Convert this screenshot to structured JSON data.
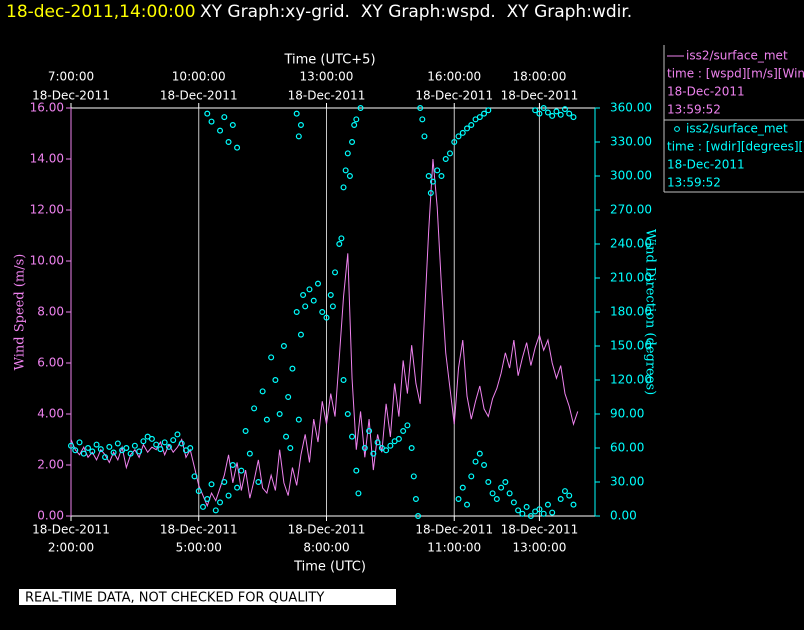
{
  "chart_data": {
    "type": "xy",
    "timestamp": "18-dec-2011,14:00:00",
    "title": "XY Graph:xy-grid.  XY Graph:wspd.  XY Graph:wdir.",
    "x_label": "Time (UTC)",
    "x2_label": "Time (UTC+5)",
    "y_label": "Wind Speed (m/s)",
    "y2_label": "Wind Direction (degrees)",
    "note": "REAL-TIME DATA, NOT CHECKED FOR QUALITY",
    "xlim": [
      2,
      14
    ],
    "xticks": [
      {
        "value": 2,
        "label": "2:00:00",
        "date": "18-Dec-2011"
      },
      {
        "value": 5,
        "label": "5:00:00",
        "date": "18-Dec-2011"
      },
      {
        "value": 8,
        "label": "8:00:00",
        "date": "18-Dec-2011"
      },
      {
        "value": 11,
        "label": "11:00:00",
        "date": "18-Dec-2011"
      },
      {
        "value": 13,
        "label": "13:00:00",
        "date": "18-Dec-2011"
      }
    ],
    "x2lim": [
      7,
      19
    ],
    "x2ticks": [
      {
        "value": 7,
        "label": "7:00:00",
        "date": "18-Dec-2011"
      },
      {
        "value": 10,
        "label": "10:00:00",
        "date": "18-Dec-2011"
      },
      {
        "value": 13,
        "label": "13:00:00",
        "date": "18-Dec-2011"
      },
      {
        "value": 16,
        "label": "16:00:00",
        "date": "18-Dec-2011"
      },
      {
        "value": 18,
        "label": "18:00:00",
        "date": "18-Dec-2011"
      }
    ],
    "ylim": [
      0,
      16
    ],
    "yticks": [
      {
        "value": 0,
        "label": "0.00"
      },
      {
        "value": 2,
        "label": "2.00"
      },
      {
        "value": 4,
        "label": "4.00"
      },
      {
        "value": 6,
        "label": "6.00"
      },
      {
        "value": 8,
        "label": "8.00"
      },
      {
        "value": 10,
        "label": "10.00"
      },
      {
        "value": 12,
        "label": "12.00"
      },
      {
        "value": 14,
        "label": "14.00"
      },
      {
        "value": 16,
        "label": "16.00"
      }
    ],
    "y2lim": [
      0,
      360
    ],
    "y2ticks": [
      {
        "value": 0,
        "label": "0.00"
      },
      {
        "value": 30,
        "label": "30.00"
      },
      {
        "value": 60,
        "label": "60.00"
      },
      {
        "value": 90,
        "label": "90.00"
      },
      {
        "value": 120,
        "label": "120.00"
      },
      {
        "value": 150,
        "label": "150.00"
      },
      {
        "value": 180,
        "label": "180.00"
      },
      {
        "value": 210,
        "label": "210.00"
      },
      {
        "value": 240,
        "label": "240.00"
      },
      {
        "value": 270,
        "label": "270.00"
      },
      {
        "value": 300,
        "label": "300.00"
      },
      {
        "value": 330,
        "label": "330.00"
      },
      {
        "value": 360,
        "label": "360.00"
      }
    ],
    "grid": true,
    "series": [
      {
        "name": "iss2/surface_met",
        "type": "line",
        "color": "#ee82ee",
        "legend_lines": [
          "time : [wspd][m/s][Wind",
          "18-Dec-2011",
          "13:59:52"
        ],
        "x": [
          2.0,
          2.1,
          2.2,
          2.3,
          2.4,
          2.5,
          2.6,
          2.7,
          2.8,
          2.9,
          3.0,
          3.1,
          3.2,
          3.3,
          3.4,
          3.5,
          3.6,
          3.7,
          3.8,
          3.9,
          4.0,
          4.1,
          4.2,
          4.3,
          4.4,
          4.5,
          4.6,
          4.7,
          4.8,
          4.9,
          5.0,
          5.1,
          5.2,
          5.3,
          5.4,
          5.5,
          5.6,
          5.7,
          5.8,
          5.9,
          6.0,
          6.1,
          6.2,
          6.3,
          6.4,
          6.5,
          6.6,
          6.7,
          6.8,
          6.9,
          7.0,
          7.1,
          7.2,
          7.3,
          7.4,
          7.5,
          7.6,
          7.7,
          7.8,
          7.9,
          8.0,
          8.1,
          8.2,
          8.3,
          8.4,
          8.5,
          8.6,
          8.7,
          8.8,
          8.9,
          9.0,
          9.1,
          9.2,
          9.3,
          9.4,
          9.5,
          9.6,
          9.7,
          9.8,
          9.9,
          10.0,
          10.1,
          10.2,
          10.3,
          10.4,
          10.5,
          10.6,
          10.7,
          10.8,
          10.9,
          11.0,
          11.1,
          11.2,
          11.3,
          11.4,
          11.5,
          11.6,
          11.7,
          11.8,
          11.9,
          12.0,
          12.1,
          12.2,
          12.3,
          12.4,
          12.5,
          12.6,
          12.7,
          12.8,
          12.9,
          13.0,
          13.1,
          13.2,
          13.3,
          13.4,
          13.5,
          13.6,
          13.7,
          13.8,
          13.9
        ],
        "values": [
          3.0,
          2.6,
          2.4,
          2.7,
          2.3,
          2.5,
          2.2,
          2.6,
          2.4,
          2.1,
          2.5,
          2.2,
          2.7,
          1.9,
          2.4,
          2.6,
          2.3,
          2.8,
          2.5,
          2.7,
          2.6,
          2.9,
          2.4,
          2.8,
          2.5,
          2.7,
          3.0,
          2.3,
          2.6,
          1.9,
          1.2,
          0.8,
          0.4,
          0.9,
          0.6,
          1.1,
          1.6,
          2.4,
          1.3,
          2.1,
          1.0,
          1.8,
          0.7,
          1.4,
          2.2,
          1.1,
          0.9,
          1.6,
          1.0,
          2.6,
          1.3,
          0.8,
          1.9,
          1.2,
          2.4,
          3.2,
          2.1,
          3.8,
          2.9,
          4.5,
          3.6,
          4.8,
          3.9,
          6.2,
          8.6,
          10.3,
          5.4,
          2.6,
          4.1,
          2.3,
          3.8,
          1.8,
          3.2,
          2.5,
          4.4,
          3.1,
          5.2,
          3.9,
          6.1,
          4.8,
          6.7,
          5.2,
          4.4,
          7.8,
          11.2,
          14.0,
          12.1,
          9.0,
          6.4,
          5.0,
          3.6,
          5.8,
          6.9,
          4.7,
          3.8,
          4.5,
          5.1,
          4.2,
          3.9,
          4.6,
          5.0,
          5.6,
          6.4,
          5.8,
          6.9,
          5.5,
          6.2,
          6.8,
          5.9,
          6.6,
          7.1,
          6.5,
          6.9,
          6.0,
          5.4,
          5.9,
          4.8,
          4.3,
          3.6,
          4.1
        ]
      },
      {
        "name": "iss2/surface_met",
        "type": "scatter",
        "axis": "y2",
        "color": "#00ffff",
        "legend_lines": [
          "time : [wdir][degrees][Wind",
          "18-Dec-2011",
          "13:59:52"
        ],
        "x": [
          2.0,
          2.1,
          2.2,
          2.3,
          2.4,
          2.5,
          2.6,
          2.7,
          2.8,
          2.9,
          3.0,
          3.1,
          3.2,
          3.3,
          3.4,
          3.5,
          3.6,
          3.7,
          3.8,
          3.9,
          4.0,
          4.1,
          4.2,
          4.3,
          4.4,
          4.5,
          4.6,
          4.7,
          4.8,
          4.9,
          5.0,
          5.1,
          5.2,
          5.3,
          5.4,
          5.5,
          5.6,
          5.7,
          5.8,
          5.9,
          5.2,
          5.3,
          5.5,
          5.6,
          5.7,
          5.8,
          5.9,
          6.0,
          6.1,
          6.2,
          6.3,
          6.4,
          6.5,
          6.6,
          6.7,
          6.8,
          6.9,
          7.0,
          7.05,
          7.1,
          7.15,
          7.2,
          7.3,
          7.35,
          7.4,
          7.3,
          7.35,
          7.4,
          7.45,
          7.5,
          7.6,
          7.7,
          7.8,
          7.9,
          8.0,
          8.1,
          8.15,
          8.2,
          8.3,
          8.35,
          8.4,
          8.45,
          8.5,
          8.55,
          8.6,
          8.65,
          8.7,
          8.8,
          8.4,
          8.5,
          8.6,
          8.7,
          8.75,
          8.9,
          9.0,
          9.1,
          9.2,
          9.3,
          9.4,
          9.5,
          9.6,
          9.7,
          9.8,
          9.9,
          10.0,
          10.05,
          10.1,
          10.15,
          10.2,
          10.25,
          10.3,
          10.4,
          10.45,
          10.5,
          10.6,
          10.7,
          10.8,
          10.9,
          11.0,
          11.1,
          11.2,
          11.3,
          11.4,
          11.5,
          11.6,
          11.7,
          11.8,
          11.1,
          11.2,
          11.3,
          11.4,
          11.5,
          11.6,
          11.7,
          11.8,
          11.9,
          12.0,
          12.1,
          12.2,
          12.3,
          12.4,
          12.5,
          12.6,
          12.7,
          12.8,
          12.9,
          13.0,
          13.1,
          13.2,
          13.3,
          13.5,
          13.6,
          13.7,
          13.8,
          12.9,
          13.0,
          13.1,
          13.2,
          13.3,
          13.4,
          13.5,
          13.6,
          13.7,
          13.8
        ],
        "values": [
          62,
          58,
          65,
          55,
          60,
          57,
          63,
          59,
          52,
          61,
          56,
          64,
          58,
          60,
          55,
          62,
          57,
          66,
          70,
          68,
          63,
          59,
          65,
          61,
          67,
          72,
          64,
          58,
          60,
          35,
          22,
          8,
          15,
          28,
          5,
          12,
          30,
          18,
          45,
          25,
          355,
          348,
          340,
          352,
          330,
          345,
          325,
          40,
          75,
          55,
          95,
          30,
          110,
          85,
          140,
          120,
          90,
          150,
          70,
          105,
          60,
          130,
          180,
          85,
          160,
          355,
          335,
          345,
          195,
          185,
          200,
          190,
          205,
          180,
          175,
          195,
          185,
          215,
          240,
          245,
          290,
          305,
          320,
          300,
          330,
          345,
          350,
          360,
          120,
          90,
          70,
          40,
          20,
          60,
          75,
          55,
          65,
          60,
          58,
          62,
          66,
          68,
          75,
          80,
          60,
          35,
          15,
          0,
          360,
          350,
          335,
          300,
          285,
          295,
          305,
          300,
          315,
          320,
          330,
          335,
          338,
          342,
          345,
          350,
          352,
          355,
          358,
          15,
          25,
          10,
          35,
          48,
          55,
          45,
          30,
          20,
          15,
          25,
          30,
          20,
          12,
          5,
          2,
          8,
          0,
          4,
          6,
          2,
          10,
          3,
          15,
          22,
          18,
          10,
          358,
          355,
          360,
          356,
          353,
          357,
          354,
          359,
          355,
          352
        ]
      }
    ]
  }
}
